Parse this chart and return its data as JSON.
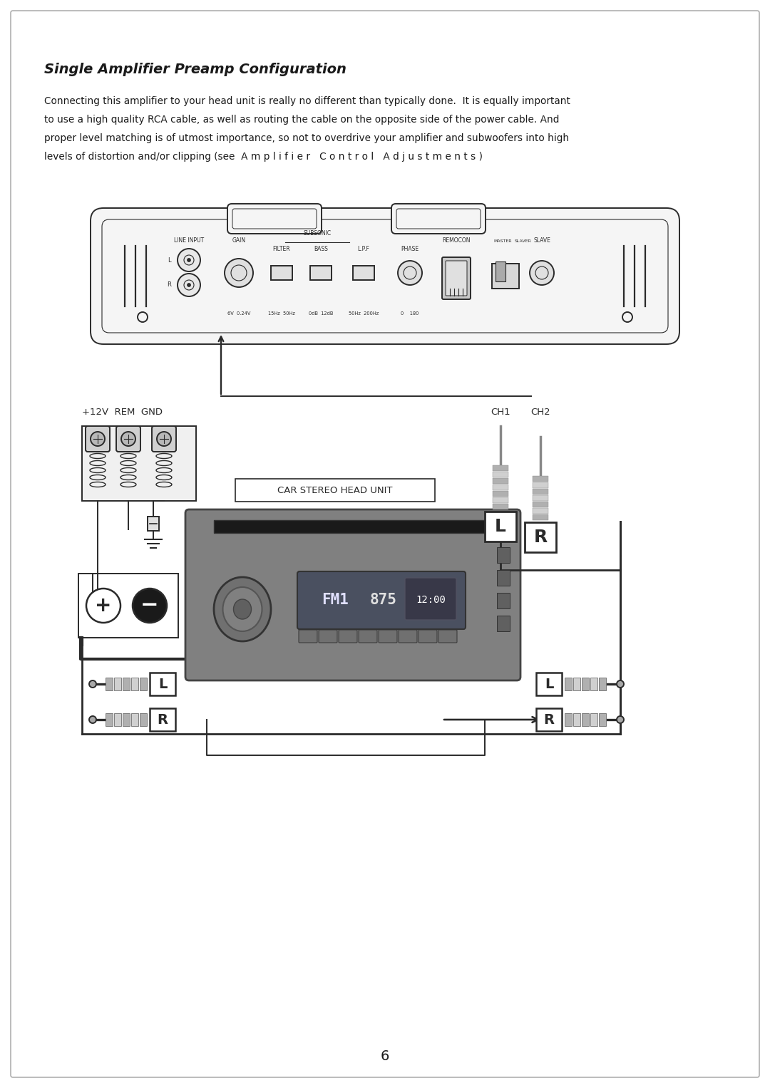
{
  "title": "Single Amplifier Preamp Configuration",
  "body_line1": "Connecting this amplifier to your head unit is really no different than typically done.  It is equally important",
  "body_line2": "to use a high quality RCA cable, as well as routing the cable on the opposite side of the power cable. And",
  "body_line3": "proper level matching is of utmost importance, so not to overdrive your amplifier and subwoofers into high",
  "body_line4": "levels of distortion and/or clipping (see  A m p l i f i e r   C o n t r o l   A d j u s t m e n t s )",
  "page_number": "6",
  "bg_color": "#ffffff",
  "border_color": "#b0b0b0",
  "text_color": "#1a1a1a",
  "diagram_color": "#2a2a2a",
  "gray_light": "#e0e0e0",
  "gray_mid": "#aaaaaa",
  "gray_dark": "#666666",
  "diag_lw": 1.4,
  "wire_lw": 2.0
}
